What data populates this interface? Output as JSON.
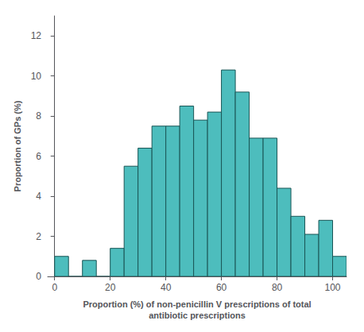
{
  "chart_data": {
    "type": "histogram",
    "bins": [
      0,
      5,
      10,
      15,
      20,
      25,
      30,
      35,
      40,
      45,
      50,
      55,
      60,
      65,
      70,
      75,
      80,
      85,
      90,
      95,
      100,
      105
    ],
    "counts": [
      1.0,
      0.0,
      0.8,
      0.0,
      1.4,
      5.5,
      6.4,
      7.5,
      7.5,
      8.5,
      7.8,
      8.2,
      10.3,
      9.2,
      6.9,
      6.9,
      4.4,
      3.0,
      2.1,
      2.8,
      1.0
    ],
    "color": "#4DBDBD",
    "xlabel": "Proportion (%) of non-penicillin V prescriptions of total\nantibiotic prescriptions",
    "ylabel": "Proportion of GPs (%)",
    "xlim": [
      -2.5,
      105
    ],
    "ylim": [
      0,
      13
    ],
    "xticks": [
      0,
      20,
      40,
      60,
      80,
      100
    ],
    "yticks": [
      0,
      2,
      4,
      6,
      8,
      10,
      12
    ],
    "grid": false
  }
}
